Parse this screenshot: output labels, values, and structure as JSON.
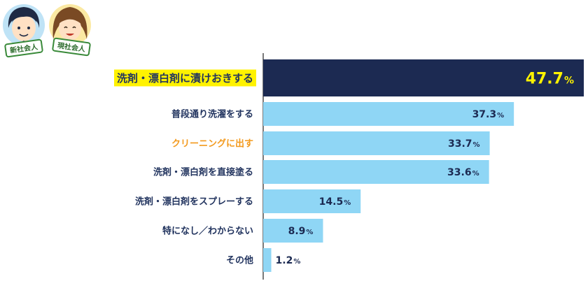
{
  "characters": {
    "left_badge": "新社会人",
    "right_badge": "現社会人"
  },
  "colors": {
    "highlight_bar": "#1c2a52",
    "bar": "#8fd6f5",
    "label": "#22345f",
    "highlight_label_bg": "#fff200",
    "accent_label": "#f39a1e",
    "highlight_value": "#fff200",
    "value": "#1c2a52",
    "axis": "#222222"
  },
  "chart_data": {
    "type": "bar",
    "orientation": "horizontal",
    "categories": [
      "洗剤・漂白剤に漬けおきする",
      "普段通り洗濯をする",
      "クリーニングに出す",
      "洗剤・漂白剤を直接塗る",
      "洗剤・漂白剤をスプレーする",
      "特になし／わからない",
      "その他"
    ],
    "values": [
      47.7,
      37.3,
      33.7,
      33.6,
      14.5,
      8.9,
      1.2
    ],
    "value_labels": [
      "47.7",
      "37.3",
      "33.7",
      "33.6",
      "14.5",
      "8.9",
      "1.2"
    ],
    "unit": "%",
    "highlight_index": 0,
    "accent_index": 2,
    "xlim": [
      0,
      47.7
    ],
    "grid": false,
    "title": "",
    "xlabel": "",
    "ylabel": ""
  }
}
